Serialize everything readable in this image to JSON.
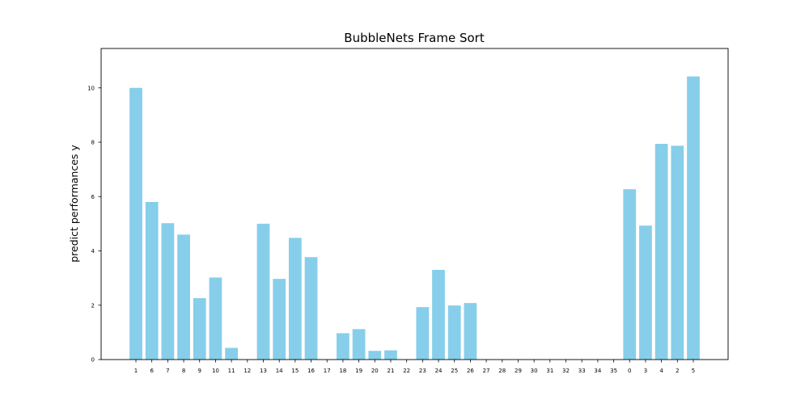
{
  "chart_data": {
    "type": "bar",
    "title": "BubbleNets Frame Sort",
    "xlabel": "",
    "ylabel": "predict performances y",
    "categories": [
      "1",
      "6",
      "7",
      "8",
      "9",
      "10",
      "11",
      "12",
      "13",
      "14",
      "15",
      "16",
      "17",
      "18",
      "19",
      "20",
      "21",
      "22",
      "23",
      "24",
      "25",
      "26",
      "27",
      "28",
      "29",
      "30",
      "31",
      "32",
      "33",
      "34",
      "35",
      "0",
      "3",
      "4",
      "2",
      "5"
    ],
    "values": [
      10.0,
      5.8,
      5.02,
      4.6,
      2.26,
      3.02,
      0.43,
      0.0,
      5.0,
      2.97,
      4.48,
      3.77,
      0.0,
      0.97,
      1.12,
      0.32,
      0.34,
      0.0,
      1.93,
      3.3,
      1.99,
      2.08,
      0.0,
      0.0,
      0.0,
      0.0,
      0.0,
      0.0,
      0.0,
      0.0,
      0.0,
      6.27,
      4.93,
      7.94,
      7.87,
      10.42
    ],
    "ylim": [
      0,
      11.45
    ],
    "yticks": [
      0,
      2,
      4,
      6,
      8,
      10
    ],
    "bar_color": "#87ceeb",
    "grid": false
  }
}
